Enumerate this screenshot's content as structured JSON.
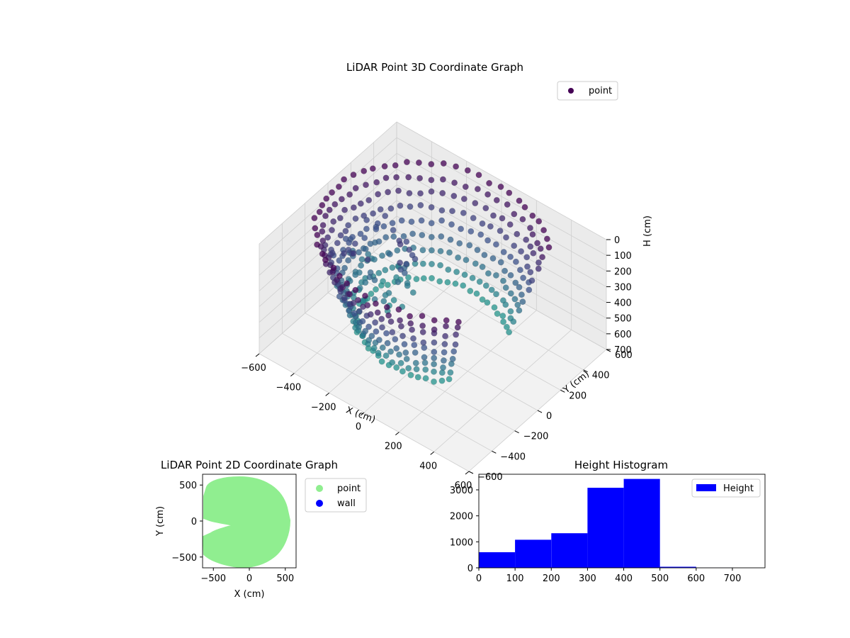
{
  "chart_data": [
    {
      "type": "scatter",
      "title": "LiDAR Point 3D Coordinate Graph",
      "xlabel": "X (cm)",
      "ylabel": "Y (cm)",
      "zlabel": "H (cm)",
      "xlim": [
        -600,
        600
      ],
      "ylim": [
        -600,
        600
      ],
      "zlim": [
        0,
        700
      ],
      "z_inverted": true,
      "x_ticks": [
        "−600",
        "−400",
        "−200",
        "0",
        "200",
        "400",
        "600"
      ],
      "y_ticks": [
        "−600",
        "−400",
        "−200",
        "0",
        "200",
        "400",
        "600"
      ],
      "z_ticks": [
        "0",
        "100",
        "200",
        "300",
        "400",
        "500",
        "600",
        "700"
      ],
      "legend": [
        "point"
      ],
      "legend_position": "top-right",
      "grid": true,
      "colormap": "viridis",
      "marker_color": "#440154",
      "shape": "ring of points, radius about 550 cm, with a wedge opening toward negative X"
    },
    {
      "type": "scatter",
      "title": "LiDAR Point 2D Coordinate Graph",
      "xlabel": "X (cm)",
      "ylabel": "Y (cm)",
      "xlim": [
        -650,
        650
      ],
      "ylim": [
        -650,
        650
      ],
      "x_ticks": [
        "−500",
        "0",
        "500"
      ],
      "y_ticks": [
        "500",
        "0",
        "−500"
      ],
      "legend": [
        {
          "label": "point",
          "color": "#90ee90"
        },
        {
          "label": "wall",
          "color": "#0000ff"
        }
      ],
      "legend_position": "outside-right",
      "point_color": "#90ee90"
    },
    {
      "type": "bar",
      "title": "Height Histogram",
      "xlabel": "",
      "ylabel": "",
      "bins": [
        {
          "start": 0,
          "end": 100,
          "count": 600
        },
        {
          "start": 100,
          "end": 200,
          "count": 1080
        },
        {
          "start": 200,
          "end": 300,
          "count": 1330
        },
        {
          "start": 300,
          "end": 400,
          "count": 3080
        },
        {
          "start": 400,
          "end": 500,
          "count": 3420
        },
        {
          "start": 500,
          "end": 600,
          "count": 40
        },
        {
          "start": 600,
          "end": 700,
          "count": 3
        },
        {
          "start": 700,
          "end": 790,
          "count": 1
        }
      ],
      "xlim": [
        0,
        790
      ],
      "ylim": [
        0,
        3600
      ],
      "x_ticks": [
        "0",
        "100",
        "200",
        "300",
        "400",
        "500",
        "600",
        "700"
      ],
      "y_ticks": [
        "0",
        "1000",
        "2000",
        "3000"
      ],
      "legend": [
        "Height"
      ],
      "legend_position": "top-right",
      "bar_color": "#0000ff"
    }
  ]
}
